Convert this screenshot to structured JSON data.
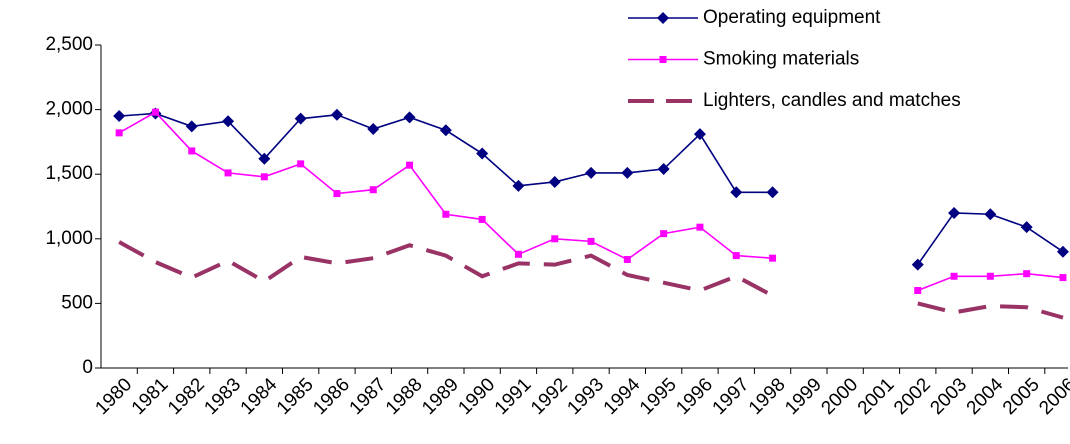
{
  "chart_data": {
    "type": "line",
    "categories": [
      "1980",
      "1981",
      "1982",
      "1983",
      "1984",
      "1985",
      "1986",
      "1987",
      "1988",
      "1989",
      "1990",
      "1991",
      "1992",
      "1993",
      "1994",
      "1995",
      "1996",
      "1997",
      "1998",
      "1999",
      "2000",
      "2001",
      "2002",
      "2003",
      "2004",
      "2005",
      "2006"
    ],
    "series": [
      {
        "name": "Operating equipment",
        "color": "#000080",
        "marker": "diamond",
        "dash": false,
        "values": [
          1950,
          1970,
          1870,
          1910,
          1620,
          1930,
          1960,
          1850,
          1940,
          1840,
          1660,
          1410,
          1440,
          1510,
          1510,
          1540,
          1810,
          1360,
          1360,
          null,
          null,
          null,
          800,
          1200,
          1190,
          1090,
          900
        ]
      },
      {
        "name": "Smoking materials",
        "color": "#ff00ff",
        "marker": "square",
        "dash": false,
        "values": [
          1820,
          1980,
          1680,
          1510,
          1480,
          1580,
          1350,
          1380,
          1570,
          1190,
          1150,
          880,
          1000,
          980,
          840,
          1040,
          1090,
          870,
          850,
          null,
          null,
          null,
          600,
          710,
          710,
          730,
          700
        ]
      },
      {
        "name": "Lighters, candles and matches",
        "color": "#993366",
        "marker": "none",
        "dash": true,
        "values": [
          975,
          820,
          700,
          830,
          670,
          860,
          810,
          850,
          950,
          870,
          710,
          810,
          800,
          870,
          720,
          660,
          600,
          710,
          560,
          null,
          null,
          null,
          500,
          430,
          480,
          470,
          390
        ]
      }
    ],
    "ylim": [
      0,
      2500
    ],
    "yticks": [
      0,
      500,
      {
        "value": 1000,
        "label": "1,000"
      },
      {
        "value": 1500,
        "label": "1,500"
      },
      {
        "value": 2000,
        "label": "2,000"
      },
      {
        "value": 2500,
        "label": "2,500"
      }
    ],
    "grid": false,
    "legend": "top-right"
  }
}
